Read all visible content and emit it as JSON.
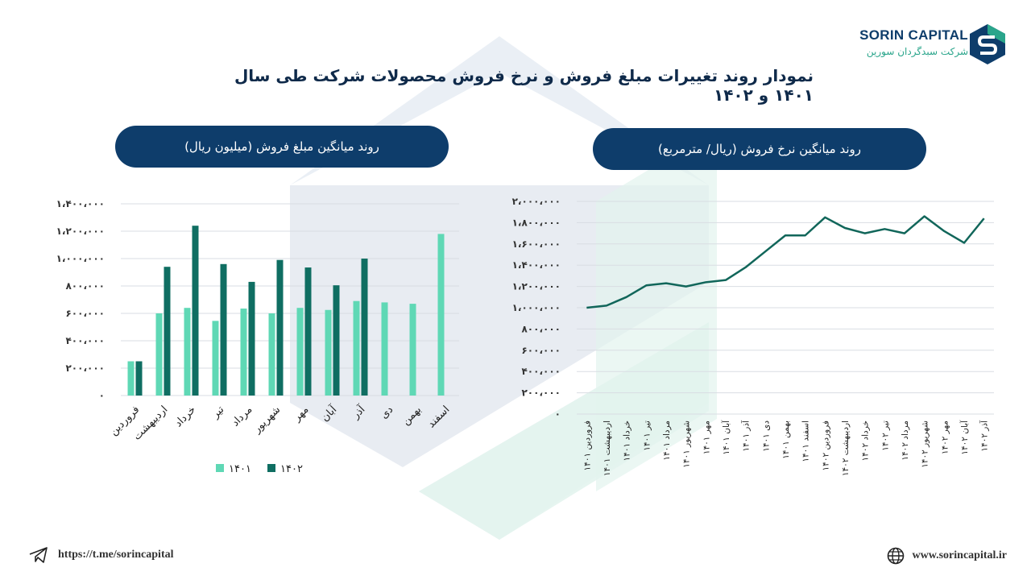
{
  "brand": {
    "name": "SORIN CAPITAL",
    "subtitle": "شرکت سبدگردان سورین"
  },
  "title": "نمودار روند تغییرات مبلغ فروش و نرخ فروش محصولات شرکت طی سال ۱۴۰۱ و ۱۴۰۲",
  "footer": {
    "telegram": "https://t.me/sorincapital",
    "website": "www.sorincapital.ir"
  },
  "chart_data": [
    {
      "type": "bar",
      "title": "روند میانگین مبلغ فروش (میلیون ریال)",
      "categories": [
        "فروردین",
        "اردیبهشت",
        "خرداد",
        "تیر",
        "مرداد",
        "شهریور",
        "مهر",
        "آبان",
        "آذر",
        "دی",
        "بهمن",
        "اسفند"
      ],
      "series": [
        {
          "name": "۱۴۰۱",
          "color": "#5fd8b5",
          "values": [
            250000,
            600000,
            640000,
            545000,
            635000,
            600000,
            640000,
            625000,
            690000,
            680000,
            670000,
            1180000
          ]
        },
        {
          "name": "۱۴۰۲",
          "color": "#0f6e62",
          "values": [
            250000,
            940000,
            1240000,
            960000,
            830000,
            990000,
            935000,
            805000,
            1000000,
            null,
            null,
            null
          ]
        }
      ],
      "yticks": [
        "۰",
        "۲۰۰،۰۰۰",
        "۴۰۰،۰۰۰",
        "۶۰۰،۰۰۰",
        "۸۰۰،۰۰۰",
        "۱،۰۰۰،۰۰۰",
        "۱،۲۰۰،۰۰۰",
        "۱،۴۰۰،۰۰۰"
      ],
      "ylim": [
        0,
        1400000
      ],
      "legend": "bottom"
    },
    {
      "type": "line",
      "title": "روند میانگین نرخ فروش (ریال/ مترمربع)",
      "categories": [
        "فروردین ۱۴۰۱",
        "اردیبهشت ۱۴۰۱",
        "خرداد ۱۴۰۱",
        "تیر ۱۴۰۱",
        "مرداد ۱۴۰۱",
        "شهریور ۱۴۰۱",
        "مهر ۱۴۰۱",
        "آبان ۱۴۰۱",
        "آذر ۱۴۰۱",
        "دی ۱۴۰۱",
        "بهمن ۱۴۰۱",
        "اسفند ۱۴۰۱",
        "فروردین ۱۴۰۲",
        "اردیبهشت ۱۴۰۲",
        "خرداد ۱۴۰۲",
        "تیر ۱۴۰۲",
        "مرداد ۱۴۰۲",
        "شهریور ۱۴۰۲",
        "مهر ۱۴۰۲",
        "آبان ۱۴۰۲",
        "آذر ۱۴۰۲"
      ],
      "series": [
        {
          "color": "#11665a",
          "values": [
            1000000,
            1020000,
            1100000,
            1210000,
            1230000,
            1200000,
            1240000,
            1260000,
            1380000,
            1530000,
            1680000,
            1680000,
            1850000,
            1750000,
            1700000,
            1740000,
            1700000,
            1860000,
            1720000,
            1610000,
            1840000
          ]
        }
      ],
      "yticks": [
        "۰",
        "۲۰۰،۰۰۰",
        "۴۰۰،۰۰۰",
        "۶۰۰،۰۰۰",
        "۸۰۰،۰۰۰",
        "۱،۰۰۰،۰۰۰",
        "۱،۲۰۰،۰۰۰",
        "۱،۴۰۰،۰۰۰",
        "۱،۶۰۰،۰۰۰",
        "۱،۸۰۰،۰۰۰",
        "۲،۰۰۰،۰۰۰"
      ],
      "ylim": [
        0,
        2000000
      ]
    }
  ]
}
